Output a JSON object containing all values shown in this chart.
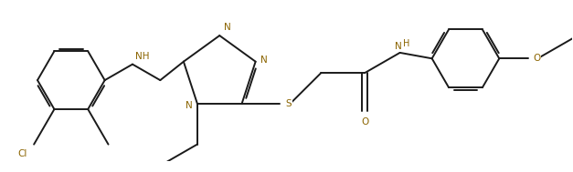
{
  "bg_color": "#ffffff",
  "line_color": "#1a1a1a",
  "heteroatom_color": "#8B6400",
  "figsize": [
    6.27,
    1.89
  ],
  "dpi": 100,
  "bond_lw": 1.4,
  "ring_r": 0.105,
  "xlim": [
    0.0,
    1.0
  ],
  "ylim": [
    0.0,
    1.0
  ]
}
